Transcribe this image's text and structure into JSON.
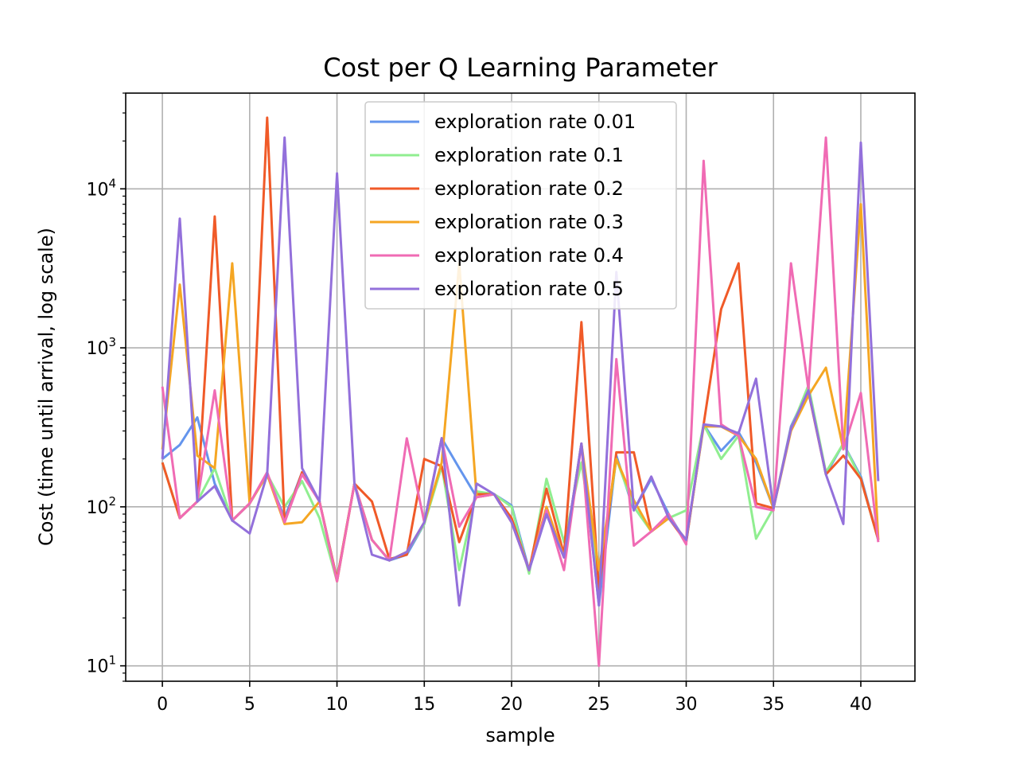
{
  "chart_data": {
    "type": "line",
    "title": "Cost per Q Learning Parameter",
    "xlabel": "sample",
    "ylabel": "Cost (time until arrival, log scale)",
    "yscale": "log",
    "xlim": [
      -2.1,
      43.1
    ],
    "ylim": [
      8,
      40000
    ],
    "xticks": [
      0,
      5,
      10,
      15,
      20,
      25,
      30,
      35,
      40
    ],
    "yticks": [
      {
        "value": 10,
        "base": "10",
        "exp": "1"
      },
      {
        "value": 100,
        "base": "10",
        "exp": "2"
      },
      {
        "value": 1000,
        "base": "10",
        "exp": "3"
      },
      {
        "value": 10000,
        "base": "10",
        "exp": "4"
      }
    ],
    "grid": true,
    "legend_position": "top-center",
    "x": [
      0,
      1,
      2,
      3,
      4,
      5,
      6,
      7,
      8,
      9,
      10,
      11,
      12,
      13,
      14,
      15,
      16,
      17,
      18,
      19,
      20,
      21,
      22,
      23,
      24,
      25,
      26,
      27,
      28,
      29,
      30,
      31,
      32,
      33,
      34,
      35,
      36,
      37,
      38,
      39,
      40,
      41
    ],
    "series": [
      {
        "name": "exploration rate 0.01",
        "color": "#6495ED",
        "values": [
          200,
          245,
          365,
          140,
          82,
          105,
          160,
          85,
          165,
          108,
          35,
          140,
          62,
          46,
          50,
          78,
          270,
          175,
          115,
          120,
          102,
          40,
          90,
          48,
          250,
          24,
          210,
          95,
          150,
          90,
          60,
          330,
          225,
          295,
          190,
          98,
          320,
          550,
          160,
          250,
          155,
          62
        ]
      },
      {
        "name": "exploration rate 0.1",
        "color": "#90EE90",
        "values": [
          190,
          85,
          108,
          175,
          82,
          105,
          160,
          100,
          145,
          85,
          34,
          140,
          62,
          46,
          52,
          78,
          180,
          40,
          125,
          120,
          100,
          38,
          150,
          60,
          190,
          35,
          200,
          100,
          70,
          85,
          95,
          330,
          200,
          280,
          63,
          98,
          310,
          580,
          165,
          250,
          150,
          62
        ]
      },
      {
        "name": "exploration rate 0.2",
        "color": "#F05A28",
        "values": [
          190,
          85,
          108,
          6700,
          82,
          105,
          28000,
          80,
          165,
          108,
          35,
          140,
          108,
          47,
          50,
          200,
          180,
          60,
          120,
          120,
          85,
          40,
          130,
          50,
          1450,
          30,
          220,
          220,
          70,
          85,
          60,
          330,
          1750,
          3400,
          105,
          98,
          310,
          530,
          160,
          210,
          150,
          62
        ]
      },
      {
        "name": "exploration rate 0.3",
        "color": "#F5A623",
        "values": [
          230,
          2500,
          210,
          175,
          3400,
          105,
          160,
          78,
          80,
          108,
          34,
          140,
          62,
          46,
          52,
          80,
          190,
          3400,
          115,
          120,
          80,
          40,
          100,
          48,
          250,
          40,
          200,
          110,
          70,
          85,
          62,
          320,
          320,
          280,
          200,
          98,
          300,
          500,
          750,
          230,
          8000,
          62
        ]
      },
      {
        "name": "exploration rate 0.4",
        "color": "#F06BB4",
        "values": [
          570,
          85,
          108,
          540,
          82,
          105,
          165,
          80,
          160,
          108,
          34,
          140,
          62,
          46,
          270,
          80,
          270,
          75,
          115,
          120,
          80,
          40,
          95,
          40,
          250,
          10,
          850,
          57,
          70,
          90,
          58,
          15000,
          330,
          280,
          100,
          95,
          3400,
          550,
          21000,
          230,
          520,
          60
        ]
      },
      {
        "name": "exploration rate 0.5",
        "color": "#9370DB",
        "values": [
          200,
          6500,
          108,
          135,
          82,
          68,
          160,
          21000,
          175,
          108,
          12500,
          140,
          50,
          46,
          52,
          80,
          270,
          24,
          140,
          120,
          80,
          40,
          90,
          48,
          250,
          24,
          3000,
          95,
          155,
          85,
          62,
          330,
          320,
          290,
          640,
          98,
          310,
          540,
          160,
          78,
          19500,
          145
        ]
      }
    ]
  }
}
